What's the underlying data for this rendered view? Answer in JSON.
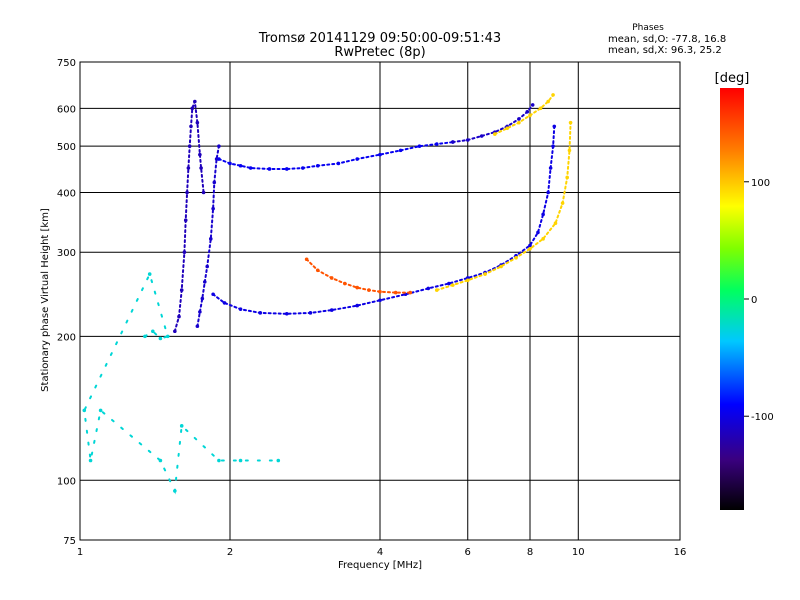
{
  "chart_data": {
    "type": "scatter",
    "title": "Tromsø 20141129 09:50:00-09:51:43",
    "subtitle": "RwPretec (8p)",
    "xlabel": "Frequency [MHz]",
    "ylabel": "Stationary phase Virtual Height [km]",
    "x_scale": "log",
    "y_scale": "log",
    "xlim": [
      1,
      16
    ],
    "ylim": [
      75,
      750
    ],
    "x_ticks": [
      1,
      2,
      4,
      6,
      8,
      10,
      16
    ],
    "y_ticks": [
      75,
      100,
      200,
      300,
      400,
      500,
      600,
      750
    ],
    "grid": true,
    "phase_stats": {
      "title": "Phases",
      "line_o": "mean, sd,O: -77.8, 16.8",
      "line_x": "mean, sd,X:  96.3, 25.2"
    },
    "colorbar": {
      "label": "[deg]",
      "range": [
        -180,
        180
      ],
      "ticks": [
        -100,
        0,
        100
      ],
      "colormap": "rainbow"
    },
    "series": [
      {
        "points": [
          [
            1.55,
            205
          ],
          [
            1.58,
            220
          ],
          [
            1.6,
            250
          ],
          [
            1.62,
            300
          ],
          [
            1.63,
            350
          ],
          [
            1.64,
            400
          ],
          [
            1.65,
            450
          ],
          [
            1.66,
            500
          ],
          [
            1.67,
            550
          ],
          [
            1.68,
            600
          ],
          [
            1.7,
            620
          ],
          [
            1.72,
            560
          ],
          [
            1.74,
            480
          ],
          [
            1.75,
            450
          ],
          [
            1.77,
            400
          ]
        ],
        "phase": -115
      },
      {
        "points": [
          [
            1.72,
            210
          ],
          [
            1.74,
            225
          ],
          [
            1.76,
            240
          ],
          [
            1.78,
            260
          ],
          [
            1.8,
            280
          ],
          [
            1.83,
            320
          ],
          [
            1.85,
            370
          ],
          [
            1.86,
            420
          ],
          [
            1.88,
            470
          ],
          [
            1.9,
            500
          ]
        ],
        "phase": -108
      },
      {
        "points": [
          [
            1.9,
            470
          ],
          [
            2.0,
            460
          ],
          [
            2.1,
            455
          ],
          [
            2.2,
            450
          ],
          [
            2.4,
            448
          ],
          [
            2.6,
            448
          ],
          [
            2.8,
            450
          ],
          [
            3.0,
            455
          ],
          [
            3.3,
            460
          ],
          [
            3.6,
            470
          ],
          [
            4.0,
            480
          ],
          [
            4.4,
            490
          ],
          [
            4.8,
            500
          ],
          [
            5.2,
            505
          ],
          [
            5.6,
            510
          ]
        ],
        "phase": -95
      },
      {
        "points": [
          [
            5.6,
            510
          ],
          [
            6.0,
            515
          ],
          [
            6.4,
            525
          ],
          [
            6.8,
            535
          ],
          [
            7.2,
            550
          ],
          [
            7.6,
            570
          ],
          [
            7.9,
            590
          ],
          [
            8.1,
            610
          ]
        ],
        "phase": -110
      },
      {
        "points": [
          [
            6.8,
            530
          ],
          [
            7.2,
            545
          ],
          [
            7.6,
            560
          ],
          [
            8.0,
            580
          ],
          [
            8.4,
            600
          ],
          [
            8.7,
            620
          ],
          [
            8.9,
            640
          ]
        ],
        "phase": 95
      },
      {
        "points": [
          [
            1.85,
            245
          ],
          [
            1.95,
            235
          ],
          [
            2.1,
            228
          ],
          [
            2.3,
            224
          ],
          [
            2.6,
            223
          ],
          [
            2.9,
            224
          ],
          [
            3.2,
            227
          ],
          [
            3.6,
            232
          ],
          [
            4.0,
            238
          ],
          [
            4.5,
            245
          ],
          [
            5.0,
            252
          ],
          [
            5.5,
            258
          ],
          [
            6.0,
            265
          ],
          [
            6.5,
            272
          ],
          [
            7.0,
            282
          ],
          [
            7.5,
            295
          ],
          [
            8.0,
            310
          ],
          [
            8.3,
            330
          ],
          [
            8.5,
            360
          ],
          [
            8.7,
            400
          ],
          [
            8.8,
            450
          ],
          [
            8.9,
            500
          ],
          [
            8.95,
            550
          ]
        ],
        "phase": -100
      },
      {
        "points": [
          [
            2.85,
            290
          ],
          [
            3.0,
            275
          ],
          [
            3.2,
            265
          ],
          [
            3.4,
            258
          ],
          [
            3.6,
            253
          ],
          [
            3.8,
            250
          ],
          [
            4.0,
            248
          ],
          [
            4.3,
            247
          ],
          [
            4.6,
            247
          ]
        ],
        "phase": 145
      },
      {
        "points": [
          [
            5.2,
            250
          ],
          [
            5.6,
            256
          ],
          [
            6.0,
            262
          ],
          [
            6.5,
            270
          ],
          [
            7.0,
            280
          ],
          [
            7.5,
            292
          ],
          [
            8.0,
            305
          ],
          [
            8.5,
            320
          ],
          [
            9.0,
            345
          ],
          [
            9.3,
            380
          ],
          [
            9.5,
            430
          ],
          [
            9.6,
            490
          ],
          [
            9.65,
            560
          ]
        ],
        "phase": 95
      },
      {
        "points": [
          [
            1.35,
            200
          ],
          [
            1.4,
            205
          ],
          [
            1.45,
            198
          ],
          [
            1.5,
            200
          ],
          [
            1.38,
            270
          ],
          [
            1.02,
            140
          ],
          [
            1.05,
            110
          ],
          [
            1.1,
            140
          ],
          [
            1.45,
            110
          ],
          [
            1.55,
            95
          ],
          [
            1.6,
            130
          ],
          [
            1.9,
            110
          ],
          [
            2.1,
            110
          ],
          [
            2.5,
            110
          ]
        ],
        "phase": -25
      }
    ]
  }
}
